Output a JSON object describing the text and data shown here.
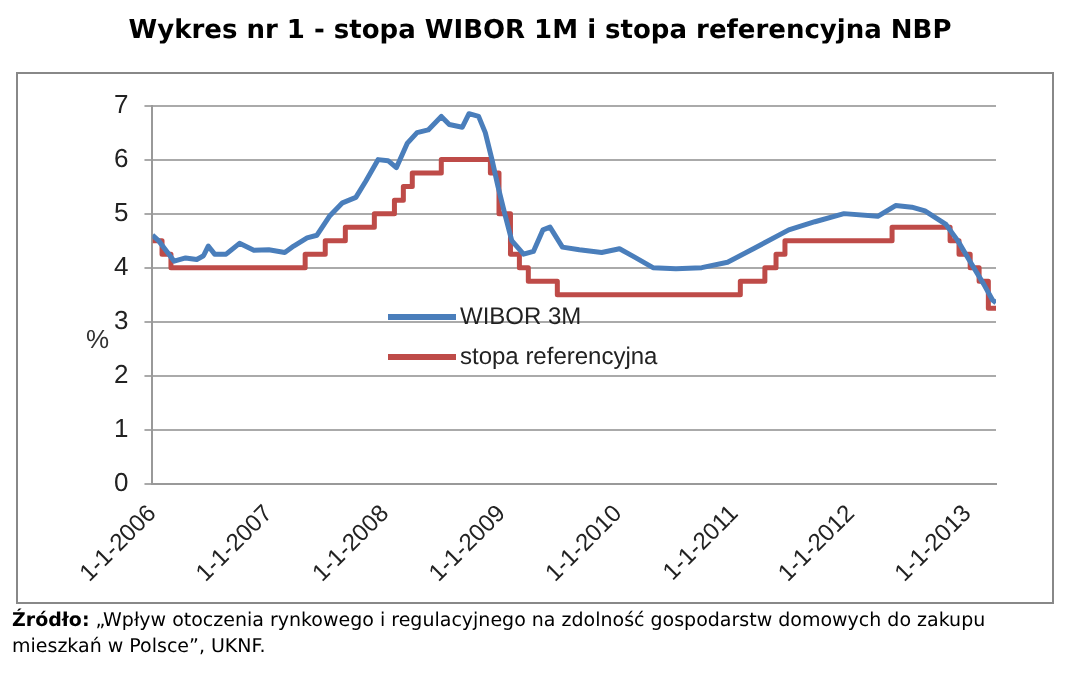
{
  "chart_data": {
    "type": "line",
    "title": "Wykres nr 1 - stopa WIBOR 1M i stopa referencyjna NBP",
    "ylabel": "%",
    "annotations": [
      "Źródło: „Wpływ otoczenia rynkowego i regulacyjnego na zdolność gospodarstw domowych do zakupu mieszkań w Polsce”, UKNF."
    ],
    "xlim": [
      "2006-01-01",
      "2013-03-31"
    ],
    "xticks": [
      {
        "value": "2006-01-01",
        "label": "1-1-2006"
      },
      {
        "value": "2007-01-01",
        "label": "1-1-2007"
      },
      {
        "value": "2008-01-01",
        "label": "1-1-2008"
      },
      {
        "value": "2009-01-01",
        "label": "1-1-2009"
      },
      {
        "value": "2010-01-01",
        "label": "1-1-2010"
      },
      {
        "value": "2011-01-01",
        "label": "1-1-2011"
      },
      {
        "value": "2012-01-01",
        "label": "1-1-2012"
      },
      {
        "value": "2013-01-01",
        "label": "1-1-2013"
      }
    ],
    "ylim": [
      0,
      7
    ],
    "yticks": [
      0,
      1,
      2,
      3,
      4,
      5,
      6,
      7
    ],
    "grid": "y",
    "legend": "center",
    "marker": "none",
    "line_style": "solid",
    "series": [
      {
        "name": "WIBOR 3M",
        "color": "#4a7ebb",
        "x": [
          "2006-01-01",
          "2006-01-20",
          "2006-02-15",
          "2006-03-10",
          "2006-04-15",
          "2006-05-20",
          "2006-06-10",
          "2006-06-25",
          "2006-07-15",
          "2006-08-20",
          "2006-10-01",
          "2006-11-15",
          "2007-01-01",
          "2007-02-20",
          "2007-03-20",
          "2007-05-01",
          "2007-06-01",
          "2007-07-10",
          "2007-08-20",
          "2007-10-01",
          "2007-11-01",
          "2007-12-10",
          "2008-01-10",
          "2008-02-05",
          "2008-03-10",
          "2008-04-10",
          "2008-05-15",
          "2008-06-25",
          "2008-07-20",
          "2008-08-30",
          "2008-09-20",
          "2008-10-20",
          "2008-11-10",
          "2008-12-01",
          "2008-12-20",
          "2009-01-10",
          "2009-02-01",
          "2009-03-10",
          "2009-04-10",
          "2009-05-10",
          "2009-06-01",
          "2009-07-10",
          "2009-09-01",
          "2009-11-10",
          "2010-01-05",
          "2010-02-20",
          "2010-04-20",
          "2010-07-01",
          "2010-09-20",
          "2010-12-10",
          "2011-03-01",
          "2011-06-20",
          "2011-09-10",
          "2011-12-10",
          "2012-03-25",
          "2012-05-20",
          "2012-07-10",
          "2012-08-20",
          "2012-10-25",
          "2012-12-01",
          "2013-01-10",
          "2013-02-20",
          "2013-03-20",
          "2013-03-31"
        ],
        "values": [
          4.6,
          4.5,
          4.3,
          4.12,
          4.18,
          4.15,
          4.22,
          4.4,
          4.25,
          4.25,
          4.45,
          4.32,
          4.33,
          4.28,
          4.4,
          4.55,
          4.6,
          4.95,
          5.2,
          5.3,
          5.6,
          6.0,
          5.98,
          5.85,
          6.3,
          6.5,
          6.55,
          6.8,
          6.65,
          6.6,
          6.85,
          6.8,
          6.5,
          6.0,
          5.5,
          5.0,
          4.5,
          4.25,
          4.3,
          4.7,
          4.75,
          4.38,
          4.33,
          4.28,
          4.35,
          4.2,
          4.0,
          3.98,
          4.0,
          4.1,
          4.35,
          4.7,
          4.85,
          5.0,
          4.95,
          5.15,
          5.12,
          5.05,
          4.8,
          4.5,
          4.1,
          3.7,
          3.4,
          3.35
        ]
      },
      {
        "name": "stopa referencyjna",
        "type": "step",
        "color": "#be4b48",
        "x": [
          "2006-01-01",
          "2006-01-31",
          "2006-02-28",
          "2007-04-25",
          "2007-06-27",
          "2007-08-29",
          "2007-11-28",
          "2008-01-30",
          "2008-02-27",
          "2008-03-26",
          "2008-06-25",
          "2008-11-26",
          "2008-12-23",
          "2009-01-28",
          "2009-02-25",
          "2009-03-25",
          "2009-06-24",
          "2011-01-19",
          "2011-04-06",
          "2011-05-11",
          "2011-06-08",
          "2012-05-09",
          "2012-11-07",
          "2012-12-05",
          "2013-01-09",
          "2013-02-06",
          "2013-03-07",
          "2013-03-31"
        ],
        "values": [
          4.5,
          4.25,
          4.0,
          4.25,
          4.5,
          4.75,
          5.0,
          5.25,
          5.5,
          5.75,
          6.0,
          5.75,
          5.0,
          4.25,
          4.0,
          3.75,
          3.5,
          3.75,
          4.0,
          4.25,
          4.5,
          4.75,
          4.5,
          4.25,
          4.0,
          3.75,
          3.25,
          3.25
        ]
      }
    ]
  }
}
